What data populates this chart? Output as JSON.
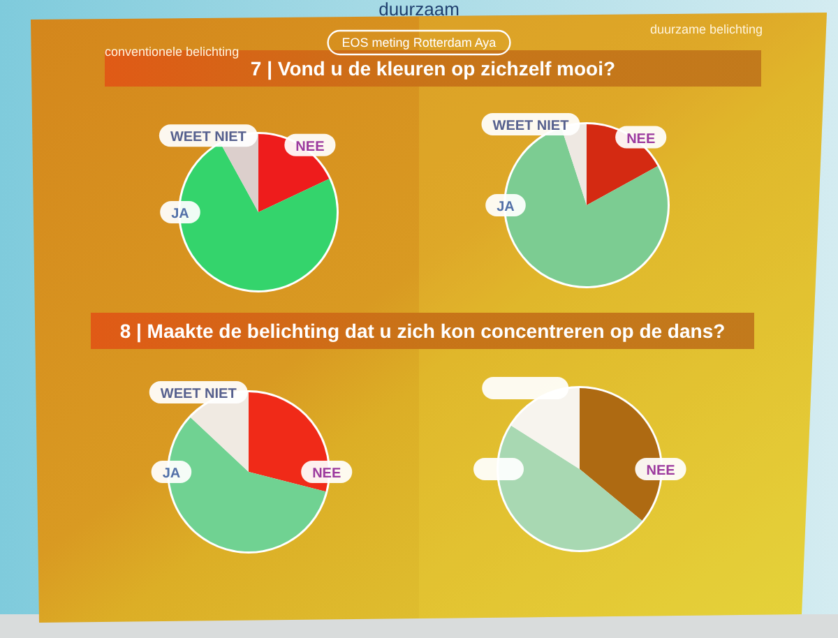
{
  "chart_data": [
    {
      "type": "pie",
      "title": "7 | Vond u de kleuren op zichzelf mooi?",
      "subtitle": "conventionele belichting",
      "annotations": [
        "duurzaam",
        "EOS meting Rotterdam Aya"
      ],
      "categories": [
        "NEE",
        "JA",
        "WEET NIET"
      ],
      "values": [
        18,
        74,
        8
      ],
      "colors": [
        "#ee1c1c",
        "#34d46c",
        "#dccfcc"
      ]
    },
    {
      "type": "pie",
      "subtitle": "duurzame belichting",
      "categories": [
        "NEE",
        "JA",
        "WEET NIET"
      ],
      "values": [
        17,
        78,
        5
      ],
      "colors": [
        "#d42a12",
        "#7ccc92",
        "#eee8e2"
      ]
    },
    {
      "type": "pie",
      "title": "8 | Maakte de belichting dat u zich kon concentreren op de dans?",
      "categories": [
        "NEE",
        "JA",
        "WEET NIET"
      ],
      "values": [
        29,
        58,
        13
      ],
      "colors": [
        "#f02a18",
        "#70d292",
        "#f0eae2"
      ]
    },
    {
      "type": "pie",
      "categories": [
        "NEE",
        null,
        null
      ],
      "values": [
        36,
        48,
        16
      ],
      "colors": [
        "#ae6a12",
        "#a8d8b2",
        "#f7f4ee"
      ]
    }
  ]
}
